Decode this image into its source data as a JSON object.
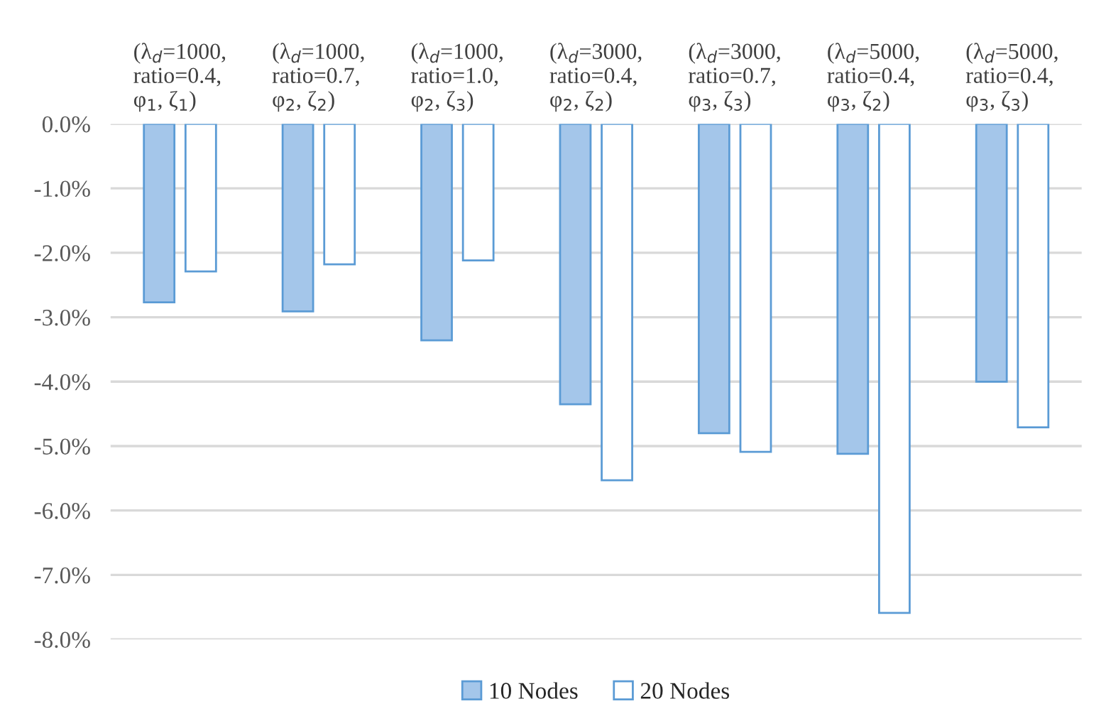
{
  "chart_data": {
    "type": "bar",
    "categories": [
      "(λ$_{d}$=1000,\nratio=0.4,\nφ$_{1}$, ζ$_{1}$)",
      "(λ$_{d}$=1000,\nratio=0.7,\nφ$_{2}$, ζ$_{2}$)",
      "(λ$_{d}$=1000,\nratio=1.0,\nφ$_{2}$, ζ$_{3}$)",
      "(λ$_{d}$=3000,\nratio=0.4,\nφ$_{2}$, ζ$_{2}$)",
      "(λ$_{d}$=3000,\nratio=0.7,\nφ$_{3}$, ζ$_{3}$)",
      "(λ$_{d}$=5000,\nratio=0.4,\nφ$_{3}$, ζ$_{2}$)",
      "(λ$_{d}$=5000,\nratio=0.4,\nφ$_{3}$, ζ$_{3}$)"
    ],
    "series": [
      {
        "name": "10 Nodes",
        "color": "#a4c6ea",
        "values": [
          -2.77,
          -2.91,
          -3.36,
          -4.35,
          -4.8,
          -5.12,
          -4.0
        ]
      },
      {
        "name": "20 Nodes",
        "color": "#ffffff",
        "values": [
          -2.29,
          -2.18,
          -2.12,
          -5.53,
          -5.09,
          -7.59,
          -4.71
        ]
      }
    ],
    "ylim": [
      -8,
      0
    ],
    "yticks": [
      {
        "value": -8,
        "label": "-8.0%"
      },
      {
        "value": -7,
        "label": "-7.0%"
      },
      {
        "value": -6,
        "label": "-6.0%"
      },
      {
        "value": -5,
        "label": "-5.0%"
      },
      {
        "value": -4,
        "label": "-4.0%"
      },
      {
        "value": -3,
        "label": "-3.0%"
      },
      {
        "value": -2,
        "label": "-2.0%"
      },
      {
        "value": -1,
        "label": "-1.0%"
      },
      {
        "value": 0,
        "label": "0.0%"
      }
    ],
    "grid": "y",
    "legend": "bottom"
  }
}
